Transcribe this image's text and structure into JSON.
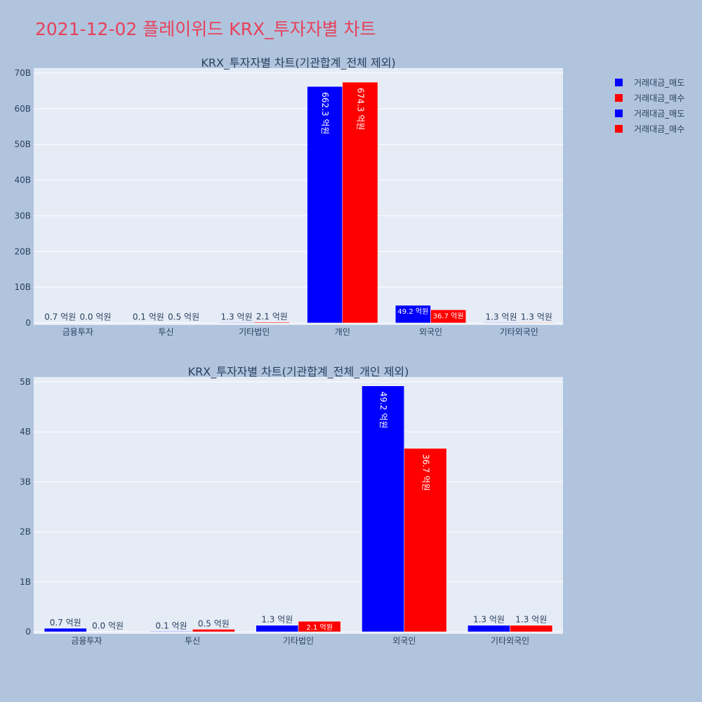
{
  "title": "2021-12-02 플레이위드 KRX_투자자별 차트",
  "colors": {
    "sell": "#0000ff",
    "buy": "#ff0000"
  },
  "legend": [
    {
      "label": "거래대금_매도",
      "color": "#0000ff"
    },
    {
      "label": "거래대금_매수",
      "color": "#ff0000"
    },
    {
      "label": "거래대금_매도",
      "color": "#0000ff"
    },
    {
      "label": "거래대금_매수",
      "color": "#ff0000"
    }
  ],
  "chart_data": [
    {
      "type": "bar",
      "title": "KRX_투자자별 차트(기관합계_전체 제외)",
      "categories": [
        "금융투자",
        "투신",
        "기타법인",
        "개인",
        "외국인",
        "기타외국인"
      ],
      "series": [
        {
          "name": "거래대금_매도",
          "values": [
            70000000,
            10000000,
            130000000,
            66230000000,
            4920000000,
            130000000
          ],
          "labels": [
            "0.7 억원",
            "0.1 억원",
            "1.3 억원",
            "662.3 억원",
            "49.2 억원",
            "1.3 억원"
          ]
        },
        {
          "name": "거래대금_매수",
          "values": [
            0,
            50000000,
            210000000,
            67430000000,
            3670000000,
            130000000
          ],
          "labels": [
            "0.0 억원",
            "0.5 억원",
            "2.1 억원",
            "674.3 억원",
            "36.7 억원",
            "1.3 억원"
          ]
        }
      ],
      "ylim": [
        0,
        70000000000
      ],
      "yticks": [
        0,
        10000000000,
        20000000000,
        30000000000,
        40000000000,
        50000000000,
        60000000000,
        70000000000
      ],
      "ytick_labels": [
        "0",
        "10B",
        "20B",
        "30B",
        "40B",
        "50B",
        "60B",
        "70B"
      ],
      "grid": true
    },
    {
      "type": "bar",
      "title": "KRX_투자자별 차트(기관합계_전체_개인 제외)",
      "categories": [
        "금융투자",
        "투신",
        "기타법인",
        "외국인",
        "기타외국인"
      ],
      "series": [
        {
          "name": "거래대금_매도",
          "values": [
            70000000,
            10000000,
            130000000,
            4920000000,
            130000000
          ],
          "labels": [
            "0.7 억원",
            "0.1 억원",
            "1.3 억원",
            "49.2 억원",
            "1.3 억원"
          ]
        },
        {
          "name": "거래대금_매수",
          "values": [
            0,
            50000000,
            210000000,
            3670000000,
            130000000
          ],
          "labels": [
            "0.0 억원",
            "0.5 억원",
            "2.1 억원",
            "36.7 억원",
            "1.3 억원"
          ]
        }
      ],
      "ylim": [
        0,
        5000000000
      ],
      "yticks": [
        0,
        1000000000,
        2000000000,
        3000000000,
        4000000000,
        5000000000
      ],
      "ytick_labels": [
        "0",
        "1B",
        "2B",
        "3B",
        "4B",
        "5B"
      ],
      "grid": true
    }
  ]
}
